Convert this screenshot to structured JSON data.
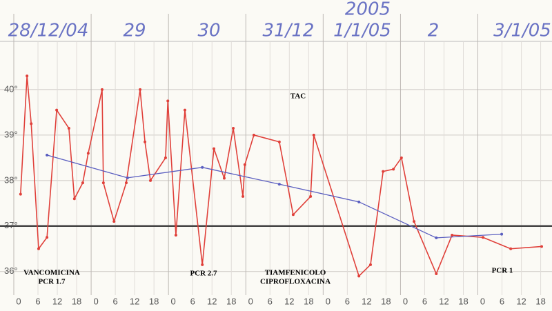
{
  "chart_data": {
    "type": "line",
    "day_labels": [
      "28/12/04",
      "29",
      "30",
      "31/12",
      "1/1/05",
      "2",
      "3/1/05"
    ],
    "year_label": "2005",
    "annotations": [
      "TAC",
      "VANCOMICINA",
      "PCR 1.7",
      "PCR 2.7",
      "TIAMFENICOLO",
      "CIPROFLOXACINA",
      "PCR 1"
    ],
    "xlim": [
      -1.5,
      165.3
    ],
    "ylim": [
      35.45,
      41.06
    ],
    "reference_line": 37,
    "grid": true,
    "yticks": [
      {
        "value": 36,
        "label": "36°"
      },
      {
        "value": 37,
        "label": "37°"
      },
      {
        "value": 38,
        "label": "38°"
      },
      {
        "value": 39,
        "label": "39°"
      },
      {
        "value": 40,
        "label": "40°"
      }
    ],
    "xticks": [
      0,
      6,
      12,
      18,
      {
        "value": 24,
        "label": "0"
      },
      {
        "value": 30,
        "label": "6"
      },
      {
        "value": 36,
        "label": "12"
      },
      {
        "value": 42,
        "label": "18"
      },
      {
        "value": 48,
        "label": "0"
      },
      {
        "value": 54,
        "label": "6"
      },
      {
        "value": 60,
        "label": "12"
      },
      {
        "value": 66,
        "label": "18"
      },
      {
        "value": 72,
        "label": "0"
      },
      {
        "value": 78,
        "label": "6"
      },
      {
        "value": 84,
        "label": "12"
      },
      {
        "value": 90,
        "label": "18"
      },
      {
        "value": 96,
        "label": "0"
      },
      {
        "value": 102,
        "label": "6"
      },
      {
        "value": 108,
        "label": "12"
      },
      {
        "value": 114,
        "label": "18"
      },
      {
        "value": 120,
        "label": "0"
      },
      {
        "value": 126,
        "label": "6"
      },
      {
        "value": 132,
        "label": "12"
      },
      {
        "value": 138,
        "label": "18"
      },
      {
        "value": 144,
        "label": "0"
      },
      {
        "value": 150,
        "label": "6"
      },
      {
        "value": 156,
        "label": "12"
      },
      {
        "value": 162,
        "label": "18"
      }
    ],
    "series": [
      {
        "color": "#e0403a",
        "x": [
          0.6,
          2.6,
          3.9,
          6.2,
          8.8,
          11.8,
          15.6,
          17.3,
          19.9,
          21.6,
          25.9,
          26.3,
          29.6,
          33.4,
          37.7,
          39.2,
          40.9,
          45.6,
          46.3,
          48.8,
          51.6,
          57.0,
          60.6,
          63.8,
          66.6,
          69.6,
          70.2,
          73.0,
          80.9,
          85.2,
          90.6,
          91.6,
          105.6,
          109.2,
          113.1,
          116.3,
          118.8,
          122.7,
          129.6,
          134.5,
          144.1,
          152.7,
          162.3
        ],
        "values": [
          37.7,
          40.3,
          39.25,
          36.5,
          36.75,
          39.55,
          39.15,
          37.6,
          37.95,
          38.6,
          40.0,
          37.95,
          37.1,
          37.95,
          40.0,
          38.85,
          38.0,
          38.5,
          39.75,
          36.8,
          39.55,
          36.15,
          38.7,
          38.05,
          39.15,
          37.65,
          38.35,
          39.0,
          38.85,
          37.25,
          37.65,
          39.0,
          35.9,
          36.15,
          38.2,
          38.25,
          38.5,
          37.1,
          35.95,
          36.8,
          36.75,
          36.5,
          36.55
        ]
      },
      {
        "color": "#5a5ec0",
        "x": [
          8.8,
          33.8,
          57.0,
          80.9,
          105.6,
          129.6,
          149.9
        ],
        "values": [
          38.56,
          38.06,
          38.29,
          37.92,
          37.53,
          36.74,
          36.82
        ]
      }
    ]
  }
}
